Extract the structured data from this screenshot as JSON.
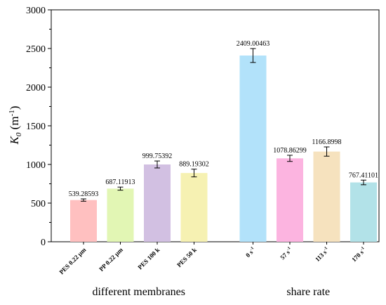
{
  "chart_data": {
    "type": "bar",
    "ylabel_main": "K",
    "ylabel_sub": "0",
    "ylabel_unit": " (m",
    "ylabel_unit_sup": "-1",
    "ylabel_close": ")",
    "ylim": [
      0,
      3000
    ],
    "yticks": [
      "0",
      "500",
      "1000",
      "1500",
      "2000",
      "2500",
      "3000"
    ],
    "grid": false,
    "groups": [
      {
        "label": "different membranes"
      },
      {
        "label": "share rate"
      }
    ],
    "bars": [
      {
        "category": "PES 0.22 μm",
        "sup": "",
        "value": 539.28593,
        "error": 15,
        "label": "539.28593",
        "color": "#ffc0c0",
        "group": 0
      },
      {
        "category": "PP 0.22 μm",
        "sup": "",
        "value": 687.11913,
        "error": 20,
        "label": "687.11913",
        "color": "#e2f6b4",
        "group": 0
      },
      {
        "category": "PES 100 k",
        "sup": "",
        "value": 999.75392,
        "error": 45,
        "label": "999.75392",
        "color": "#d2c0e2",
        "group": 0
      },
      {
        "category": "PES 50 k",
        "sup": "",
        "value": 889.19302,
        "error": 50,
        "label": "889.19302",
        "color": "#f6f1b2",
        "group": 0
      },
      {
        "category": "0 s",
        "sup": "-1",
        "value": 2409.00463,
        "error": 90,
        "label": "2409.00463",
        "color": "#b2e2fa",
        "group": 1
      },
      {
        "category": "57 s",
        "sup": "-1",
        "value": 1078.86299,
        "error": 40,
        "label": "1078.86299",
        "color": "#fcb4e0",
        "group": 1
      },
      {
        "category": "113 s",
        "sup": "-1",
        "value": 1166.8998,
        "error": 60,
        "label": "1166.8998",
        "color": "#f6e2be",
        "group": 1
      },
      {
        "category": "170 s",
        "sup": "-1",
        "value": 767.41101,
        "error": 30,
        "label": "767.41101",
        "color": "#b2e2e8",
        "group": 1
      }
    ]
  }
}
